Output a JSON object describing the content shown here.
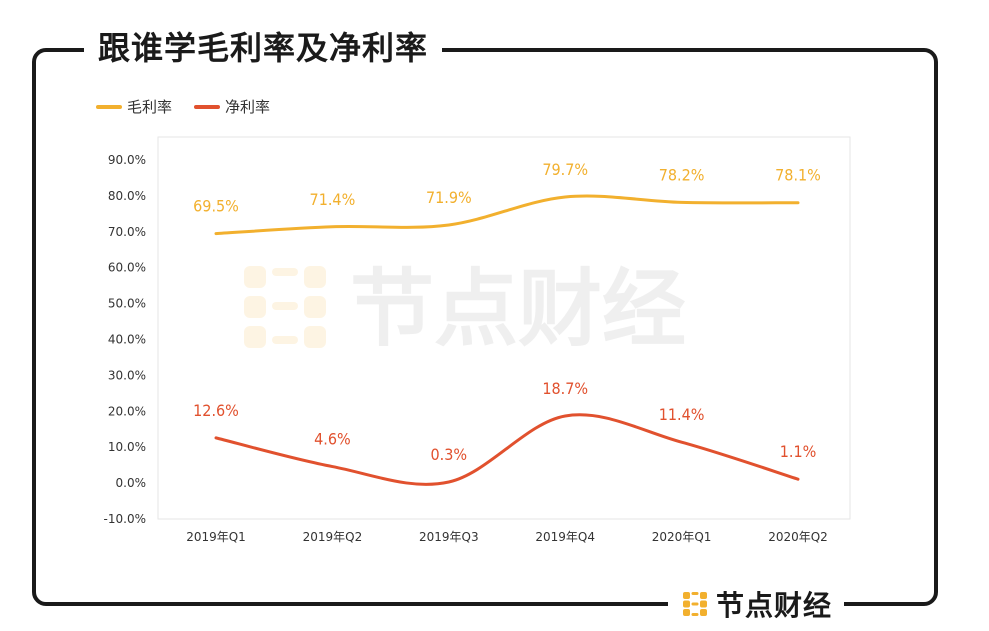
{
  "title": "跟谁学毛利率及净利率",
  "brand": {
    "name": "节点财经",
    "watermark": "节点财经"
  },
  "colors": {
    "gross": "#F2B02E",
    "net": "#E1512E",
    "frame": "#1a1a1a"
  },
  "chart_data": {
    "type": "line",
    "title": "跟谁学毛利率及净利率",
    "categories": [
      "2019年Q1",
      "2019年Q2",
      "2019年Q3",
      "2019年Q4",
      "2020年Q1",
      "2020年Q2"
    ],
    "series": [
      {
        "name": "毛利率",
        "values": [
          69.5,
          71.4,
          71.9,
          79.7,
          78.2,
          78.1
        ],
        "labels": [
          "69.5%",
          "71.4%",
          "71.9%",
          "79.7%",
          "78.2%",
          "78.1%"
        ],
        "color": "#F2B02E"
      },
      {
        "name": "净利率",
        "values": [
          12.6,
          4.6,
          0.3,
          18.7,
          11.4,
          1.1
        ],
        "labels": [
          "12.6%",
          "4.6%",
          "0.3%",
          "18.7%",
          "11.4%",
          "1.1%"
        ],
        "color": "#E1512E"
      }
    ],
    "yticks": [
      90.0,
      80.0,
      70.0,
      60.0,
      50.0,
      40.0,
      30.0,
      20.0,
      10.0,
      0.0,
      -10.0
    ],
    "ytick_labels": [
      "90.0%",
      "80.0%",
      "70.0%",
      "60.0%",
      "50.0%",
      "40.0%",
      "30.0%",
      "20.0%",
      "10.0%",
      "0.0%",
      "-10.0%"
    ],
    "ylim": [
      -10,
      90
    ],
    "legend": "top-left",
    "grid": false,
    "smooth": true
  }
}
